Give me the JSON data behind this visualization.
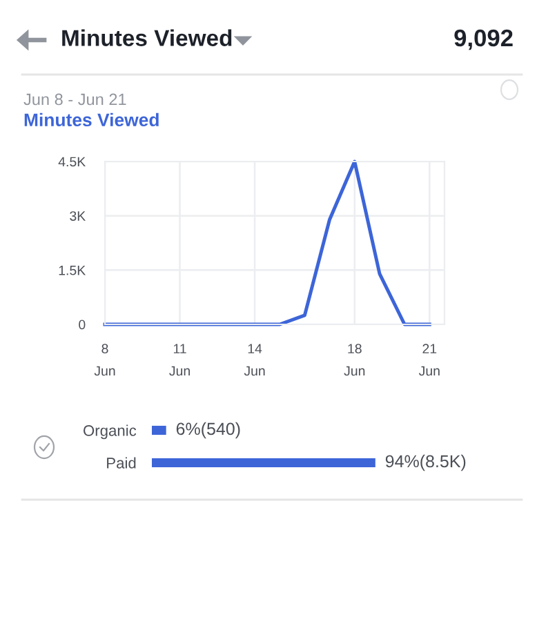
{
  "chart_data": [
    {
      "type": "line",
      "title": "Minutes Viewed",
      "subtitle": "Jun 8 - Jun 21",
      "annotations": [
        "9,092",
        "Minutes Viewed"
      ],
      "categories": [
        "8\nJun",
        null,
        null,
        "11\nJun",
        null,
        null,
        "14\nJun",
        null,
        null,
        null,
        "18\nJun",
        null,
        null,
        "21\nJun"
      ],
      "series": [
        {
          "color": "#3d65d8",
          "values": [
            0,
            0,
            0,
            0,
            0,
            0,
            0,
            0,
            250,
            2900,
            4500,
            1400,
            0,
            0
          ]
        }
      ],
      "ylim": [
        0,
        4500
      ],
      "yticks": [
        0,
        {
          "value": 1500,
          "label": "1.5K"
        },
        {
          "value": 3000,
          "label": "3K"
        },
        {
          "value": 4500,
          "label": "4.5K"
        }
      ],
      "grid": true,
      "marker": "none",
      "line_style": "solid"
    },
    {
      "type": "bar",
      "orientation": "horizontal",
      "categories": [
        "Organic",
        "Paid"
      ],
      "values": [
        6,
        94
      ],
      "value_labels": [
        "6%(540)",
        "94%(8.5K)"
      ],
      "color": "#3d65d8",
      "tick_labels": "y"
    }
  ]
}
